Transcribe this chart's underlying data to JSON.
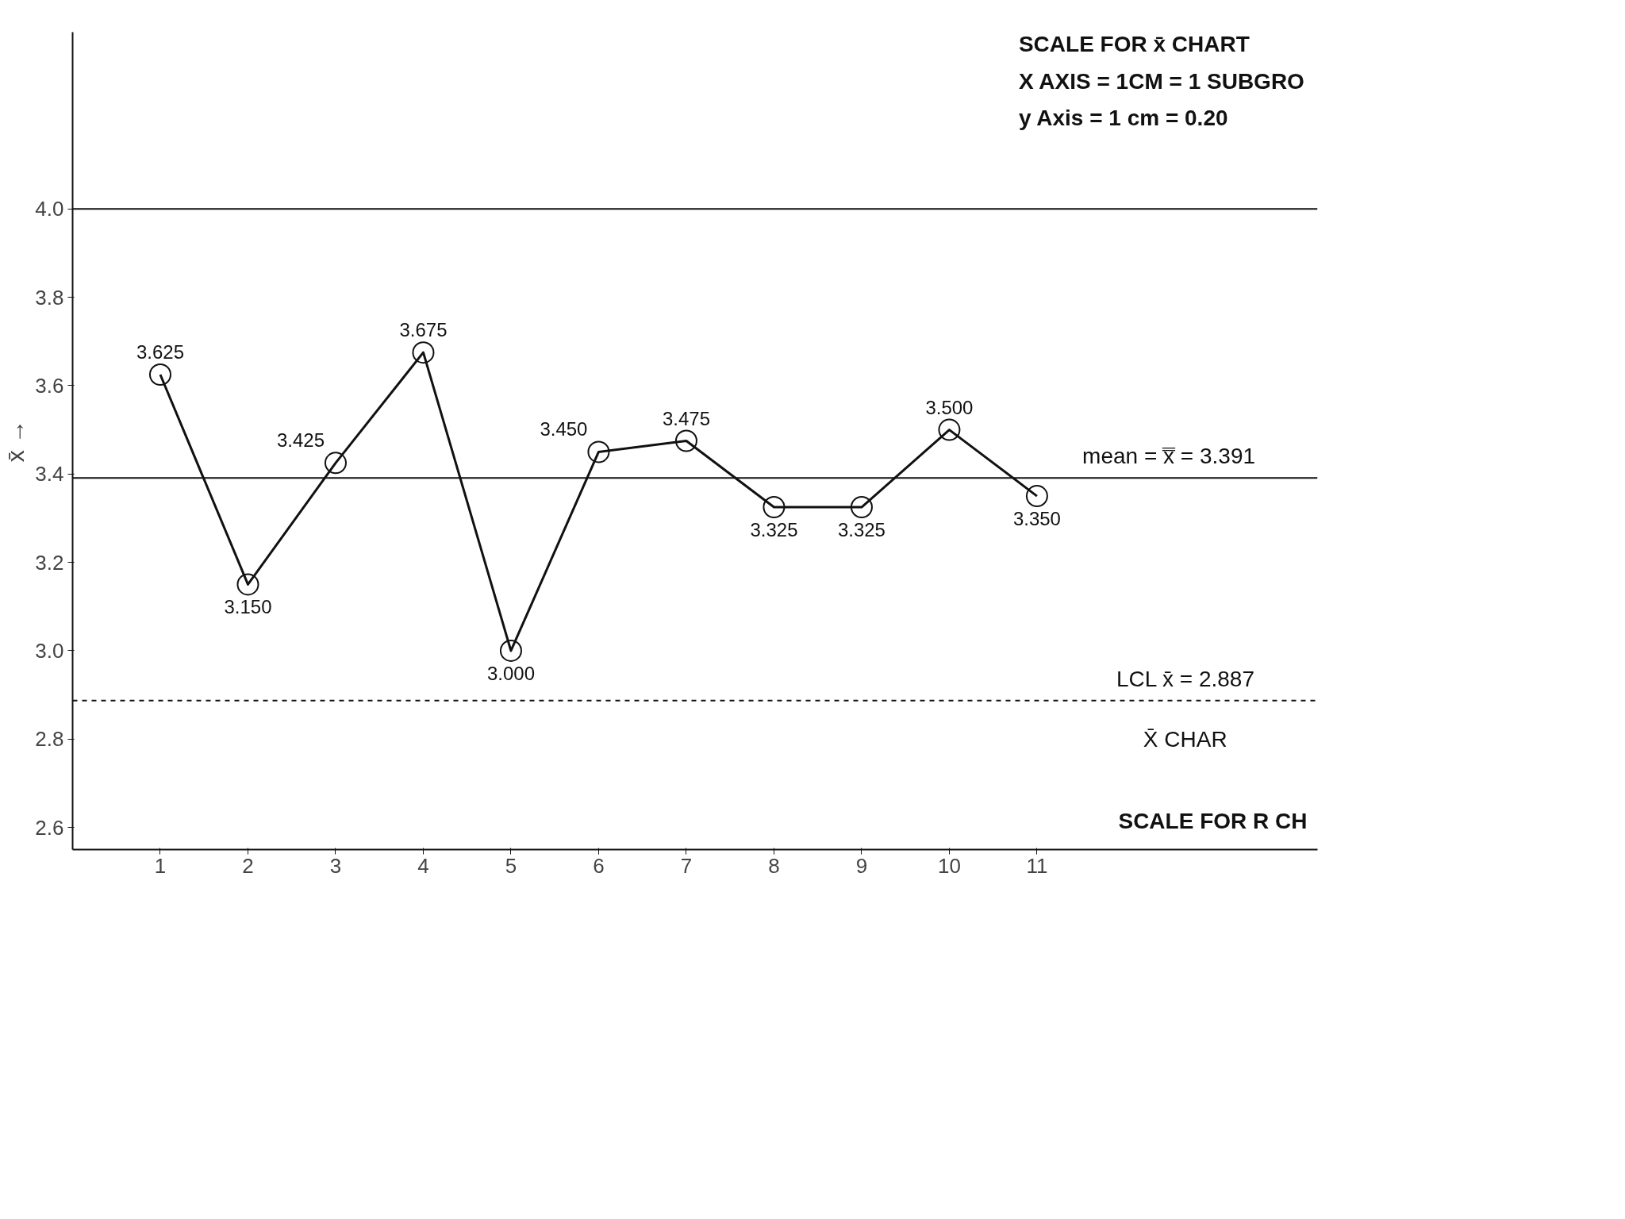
{
  "chart_data": {
    "type": "line",
    "ylabel": "x̄ →",
    "x": [
      1,
      2,
      3,
      4,
      5,
      6,
      7,
      8,
      9,
      10,
      11
    ],
    "series": [
      {
        "color": "#111111",
        "values": [
          3.625,
          3.15,
          3.425,
          3.675,
          3.0,
          3.45,
          3.475,
          3.325,
          3.325,
          3.5,
          3.35
        ],
        "value_labels": [
          "3.625",
          "3.150",
          "3.425",
          "3.675",
          "3.000",
          "3.450",
          "3.475",
          "3.325",
          "3.325",
          "3.500",
          "3.350"
        ]
      }
    ],
    "marker": "circle",
    "line_style": "solid",
    "xlim": [
      0,
      14.2
    ],
    "xticks": [
      1,
      2,
      3,
      4,
      5,
      6,
      7,
      8,
      9,
      10,
      11
    ],
    "ylim": [
      2.55,
      4.4
    ],
    "yticks": [
      {
        "value": 2.6,
        "label": "2.6"
      },
      {
        "value": 2.8,
        "label": "2.8"
      },
      {
        "value": 3.0,
        "label": "3.0"
      },
      {
        "value": 3.2,
        "label": "3.2"
      },
      {
        "value": 3.4,
        "label": "3.4"
      },
      {
        "value": 3.6,
        "label": "3.6"
      },
      {
        "value": 3.8,
        "label": "3.8"
      },
      {
        "value": 4.0,
        "label": "4.0"
      }
    ],
    "ref_lines": [
      {
        "axis": "y",
        "value": 4.0,
        "label": null,
        "color": "#111111",
        "line_style": "solid"
      },
      {
        "axis": "y",
        "value": 3.391,
        "label": "mean = x̿ = 3.391",
        "color": "#111111",
        "line_style": "solid"
      },
      {
        "axis": "y",
        "value": 2.887,
        "label": "LCL x̄ = 2.887",
        "color": "#111111",
        "line_style": "dashed"
      }
    ],
    "annotations": [
      "SCALE FOR x̄ CHART",
      "X AXIS   = 1CM = 1 SUBGRO",
      "y Axis    = 1 cm = 0.20",
      "X̄  CHAR",
      "SCALE FOR R CH"
    ]
  }
}
